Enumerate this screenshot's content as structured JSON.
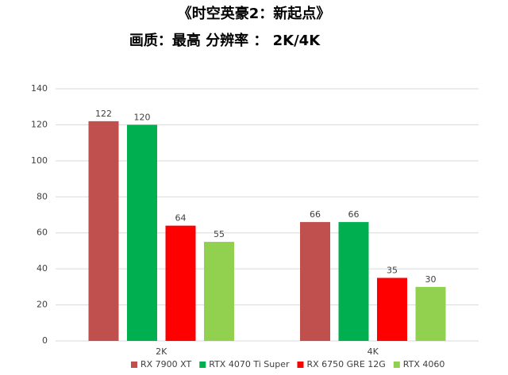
{
  "chart_data": {
    "type": "grouped_bar",
    "title": "《时空英豪2：新起点》",
    "subtitle": "画质：最高 分辨率 ： 2K/4K",
    "categories": [
      "2K",
      "4K"
    ],
    "series": [
      {
        "name": "RX 7900 XT",
        "color": "#c0504d",
        "values": [
          122,
          66
        ]
      },
      {
        "name": "RTX 4070 Ti Super",
        "color": "#00b050",
        "values": [
          120,
          66
        ]
      },
      {
        "name": "RX 6750 GRE 12G",
        "color": "#ff0000",
        "values": [
          64,
          35
        ]
      },
      {
        "name": "RTX 4060",
        "color": "#92d050",
        "values": [
          55,
          30
        ]
      }
    ],
    "ylim": [
      0,
      140
    ],
    "yticks": [
      0,
      20,
      40,
      60,
      80,
      100,
      120,
      140
    ],
    "grid": true,
    "legend": "bottom"
  }
}
